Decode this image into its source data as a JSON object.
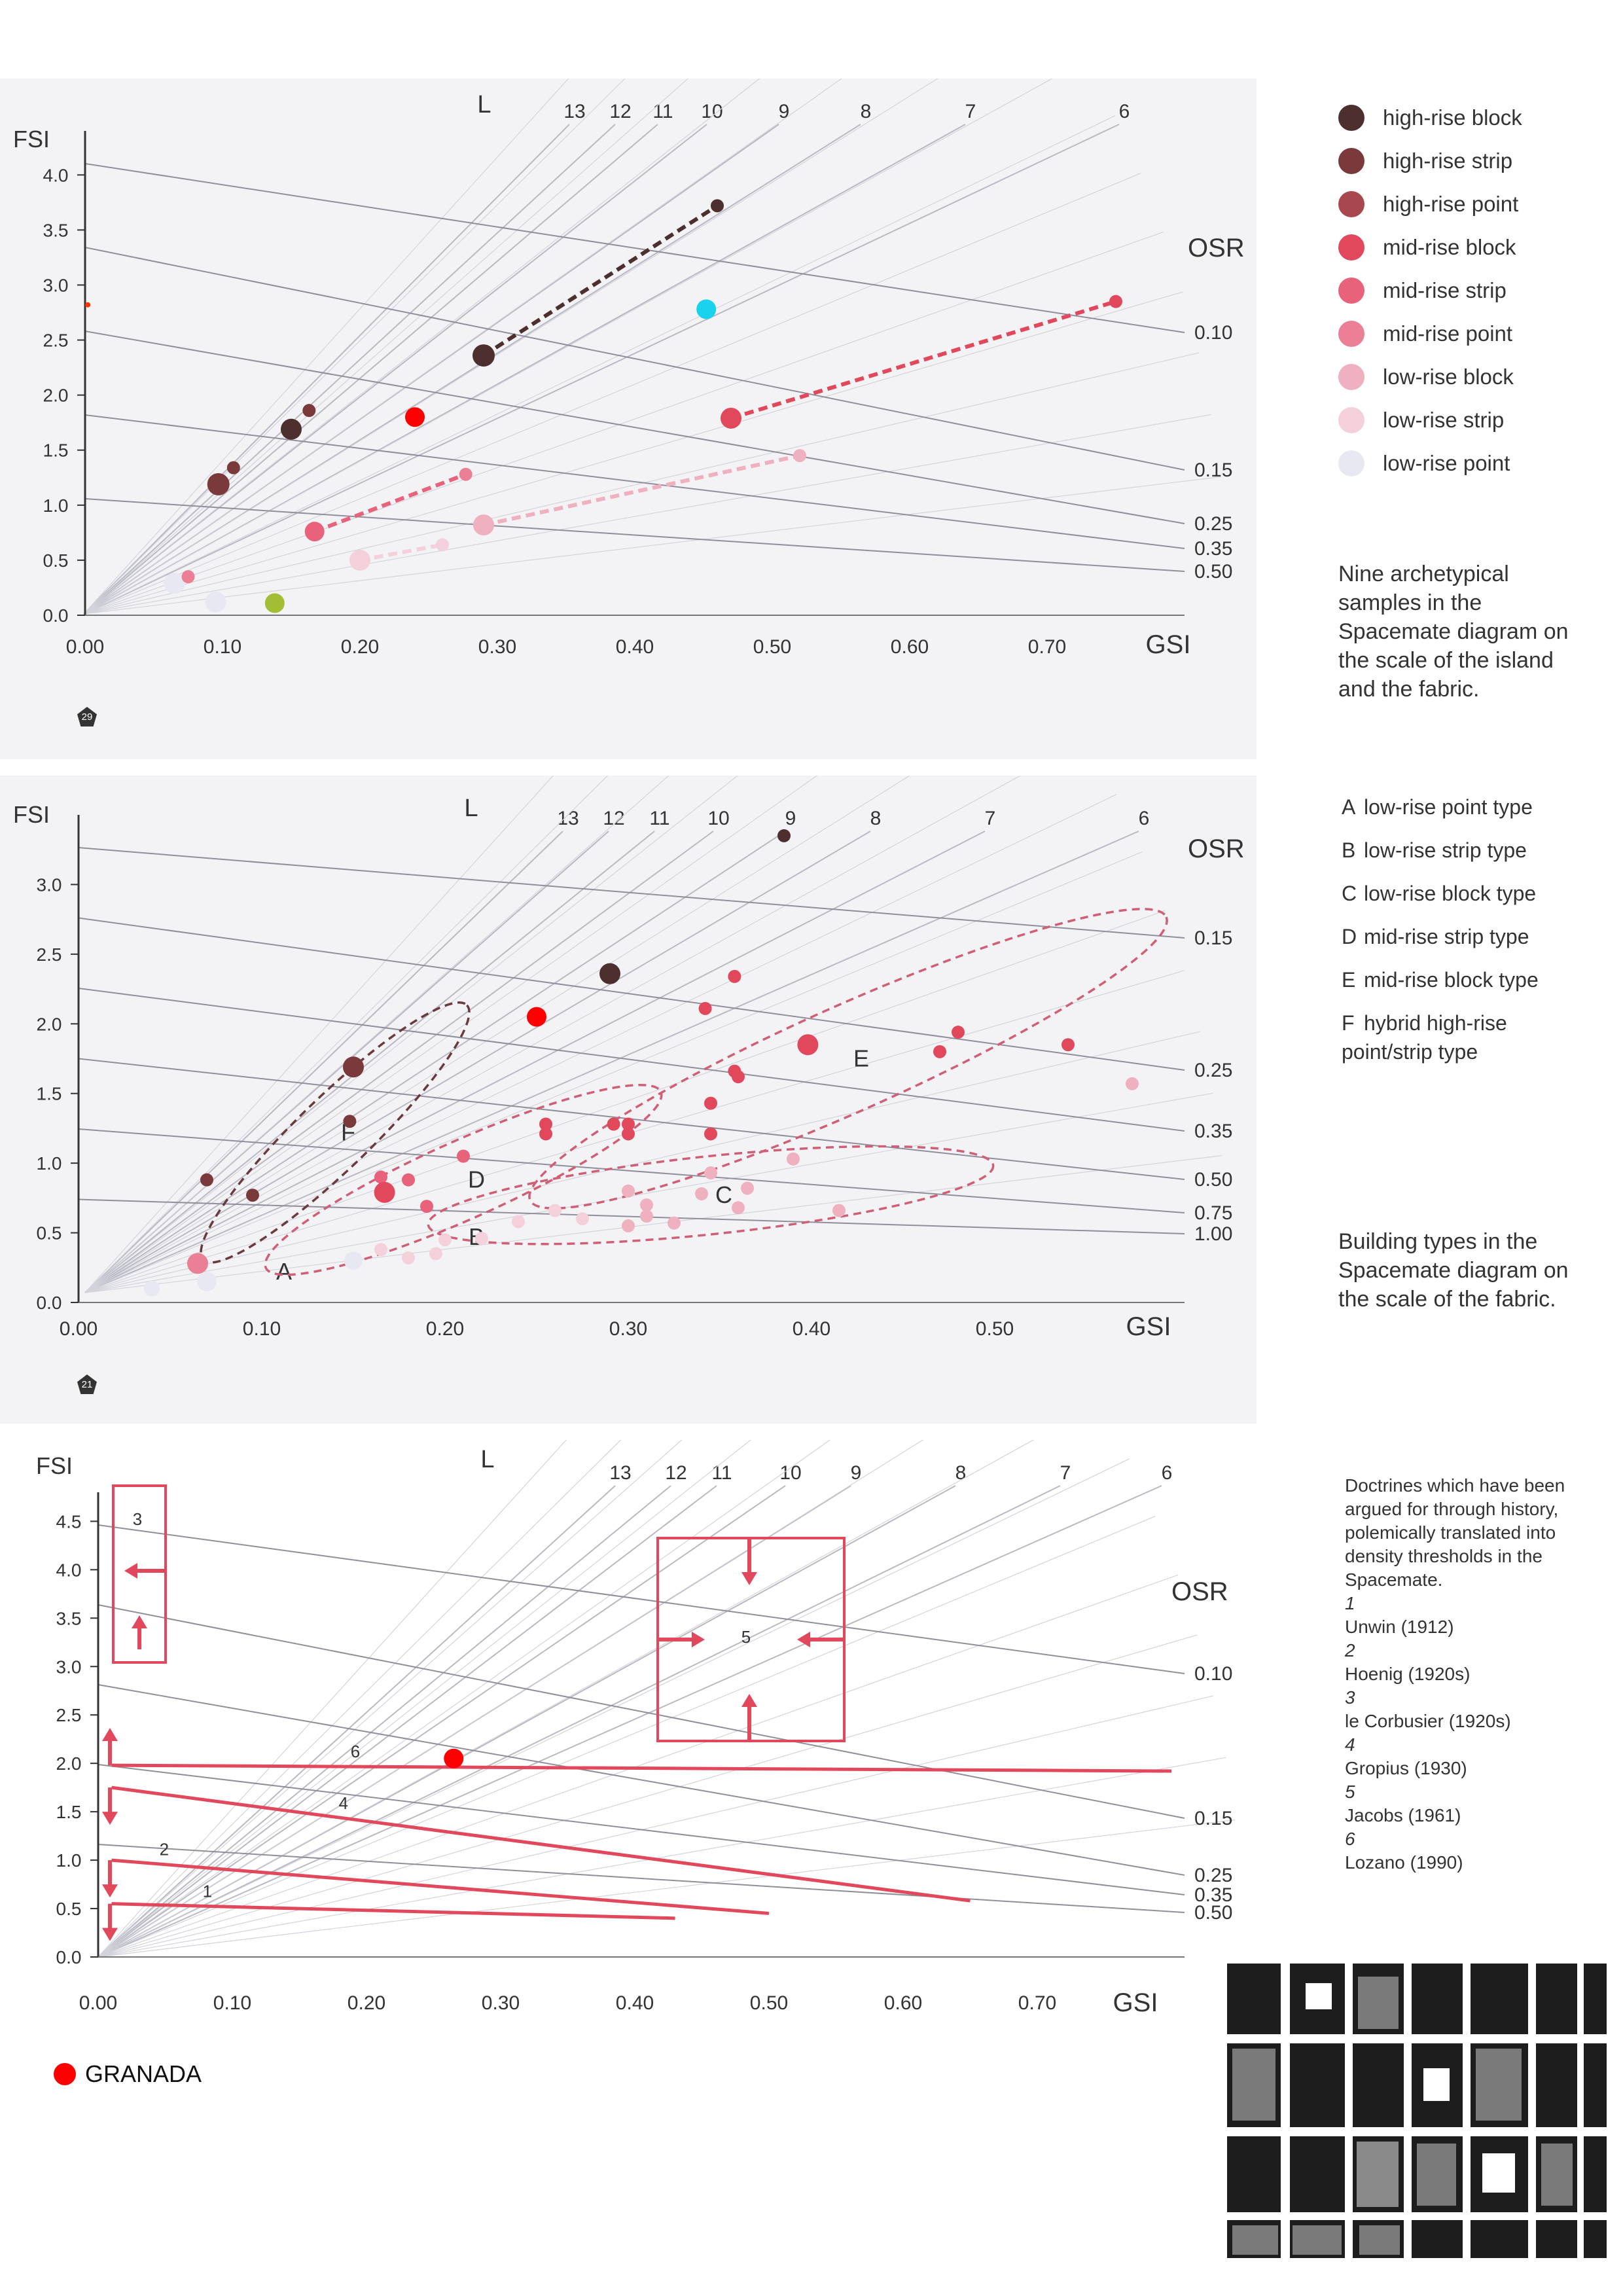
{
  "panels": [
    {
      "badge": "29",
      "legend": [
        {
          "label": "high-rise block",
          "color": "#4e2f2f"
        },
        {
          "label": "high-rise strip",
          "color": "#7a3a3c"
        },
        {
          "label": "high-rise point",
          "color": "#a8474e"
        },
        {
          "label": "mid-rise block",
          "color": "#e2485c"
        },
        {
          "label": "mid-rise strip",
          "color": "#e7627a"
        },
        {
          "label": "mid-rise point",
          "color": "#eb7f95"
        },
        {
          "label": "low-rise block",
          "color": "#efb0c0"
        },
        {
          "label": "low-rise strip",
          "color": "#f4d0da"
        },
        {
          "label": "low-rise point",
          "color": "#e8e8f3"
        }
      ],
      "caption": "Nine archetypical samples in the Spacemate diagram on the scale of the island and the fabric."
    },
    {
      "badge": "21",
      "types": [
        {
          "letter": "A",
          "label": "low-rise point type"
        },
        {
          "letter": "B",
          "label": "low-rise strip type"
        },
        {
          "letter": "C",
          "label": "low-rise block type"
        },
        {
          "letter": "D",
          "label": "mid-rise strip type"
        },
        {
          "letter": "E",
          "label": "mid-rise block type"
        },
        {
          "letter": "F",
          "label": "hybrid high-rise point/strip type"
        }
      ],
      "caption": "Building types in the Spacemate diagram on the scale of the fabric."
    },
    {
      "doctrines_intro": "Doctrines which have been argued for through history, polemically translated into density thresholds in the Spacemate.",
      "doctrines": [
        {
          "num": "1",
          "name": "Unwin (1912)"
        },
        {
          "num": "2",
          "name": "Hoenig (1920s)"
        },
        {
          "num": "3",
          "name": "le Corbusier (1920s)"
        },
        {
          "num": "4",
          "name": "Gropius (1930)"
        },
        {
          "num": "5",
          "name": "Jacobs (1961)"
        },
        {
          "num": "6",
          "name": "Lozano (1990)"
        }
      ],
      "granada_label": "GRANADA"
    }
  ],
  "chart_data": [
    {
      "type": "scatter",
      "xlabel": "GSI",
      "ylabel": "FSI",
      "xlim": [
        0,
        0.8
      ],
      "ylim": [
        0,
        4.4
      ],
      "xticks": [
        "0.00",
        "0.10",
        "0.20",
        "0.30",
        "0.40",
        "0.50",
        "0.60",
        "0.70"
      ],
      "yticks": [
        "0.0",
        "0.5",
        "1.0",
        "1.5",
        "2.0",
        "2.5",
        "3.0",
        "3.5",
        "4.0"
      ],
      "l_label": "L",
      "osr_label": "OSR",
      "l_lines": [
        "13",
        "12",
        "11",
        "10",
        "9",
        "8",
        "7",
        "6"
      ],
      "osr_lines": [
        "0.10",
        "0.15",
        "0.25",
        "0.35",
        "0.50"
      ],
      "points": [
        {
          "x": 0.065,
          "y": 0.29,
          "cat": 8,
          "r": 16
        },
        {
          "x": 0.075,
          "y": 0.35,
          "cat": 5,
          "r": 10
        },
        {
          "x": 0.095,
          "y": 0.12,
          "cat": 8,
          "r": 16
        },
        {
          "x": 0.097,
          "y": 1.19,
          "cat": 1,
          "r": 17
        },
        {
          "x": 0.108,
          "y": 1.34,
          "cat": 1,
          "r": 10
        },
        {
          "x": 0.15,
          "y": 1.69,
          "cat": 0,
          "r": 16
        },
        {
          "x": 0.163,
          "y": 1.86,
          "cat": 1,
          "r": 10
        },
        {
          "x": 0.167,
          "y": 0.76,
          "cat": 4,
          "r": 15
        },
        {
          "x": 0.2,
          "y": 0.5,
          "cat": 7,
          "r": 16
        },
        {
          "x": 0.277,
          "y": 1.28,
          "cat": 5,
          "r": 10
        },
        {
          "x": 0.26,
          "y": 0.64,
          "cat": 7,
          "r": 10
        },
        {
          "x": 0.29,
          "y": 2.36,
          "cat": 0,
          "r": 17
        },
        {
          "x": 0.29,
          "y": 0.82,
          "cat": 6,
          "r": 16
        },
        {
          "x": 0.46,
          "y": 3.72,
          "cat": 0,
          "r": 10
        },
        {
          "x": 0.47,
          "y": 1.79,
          "cat": 3,
          "r": 16
        },
        {
          "x": 0.52,
          "y": 1.45,
          "cat": 6,
          "r": 10
        },
        {
          "x": 0.75,
          "y": 2.85,
          "cat": 3,
          "r": 10
        }
      ],
      "links": [
        {
          "from": [
            0.29,
            2.36
          ],
          "to": [
            0.46,
            3.72
          ],
          "cat": 0
        },
        {
          "from": [
            0.47,
            1.79
          ],
          "to": [
            0.75,
            2.85
          ],
          "cat": 3
        },
        {
          "from": [
            0.167,
            0.76
          ],
          "to": [
            0.277,
            1.28
          ],
          "cat": 4
        },
        {
          "from": [
            0.29,
            0.82
          ],
          "to": [
            0.52,
            1.45
          ],
          "cat": 6
        },
        {
          "from": [
            0.2,
            0.5
          ],
          "to": [
            0.26,
            0.64
          ],
          "cat": 7
        }
      ],
      "highlights": [
        {
          "x": 0.24,
          "y": 1.8,
          "color": "#ff0000"
        },
        {
          "x": 0.452,
          "y": 2.78,
          "color": "#19d3ee"
        },
        {
          "x": 0.138,
          "y": 0.11,
          "color": "#a2be34"
        },
        {
          "x": 0.002,
          "y": 2.82,
          "color": "#ff3300"
        }
      ]
    },
    {
      "type": "scatter",
      "xlabel": "GSI",
      "ylabel": "FSI",
      "xlim": [
        0,
        0.6
      ],
      "ylim": [
        0,
        3.5
      ],
      "xticks": [
        "0.00",
        "0.10",
        "0.20",
        "0.30",
        "0.40",
        "0.50"
      ],
      "yticks": [
        "0.0",
        "0.5",
        "1.0",
        "1.5",
        "2.0",
        "2.5",
        "3.0"
      ],
      "l_label": "L",
      "osr_label": "OSR",
      "l_lines": [
        "13",
        "12",
        "11",
        "10",
        "9",
        "8",
        "7",
        "6"
      ],
      "osr_lines": [
        "0.15",
        "0.25",
        "0.35",
        "0.50",
        "0.75",
        "1.00"
      ],
      "points": [
        {
          "x": 0.385,
          "y": 3.35,
          "cat": 0,
          "r": 10
        },
        {
          "x": 0.29,
          "y": 2.36,
          "cat": 0,
          "r": 16
        },
        {
          "x": 0.15,
          "y": 1.69,
          "cat": 1,
          "r": 16
        },
        {
          "x": 0.148,
          "y": 1.3,
          "cat": 1,
          "r": 10
        },
        {
          "x": 0.07,
          "y": 0.88,
          "cat": 1,
          "r": 10
        },
        {
          "x": 0.095,
          "y": 0.77,
          "cat": 1,
          "r": 10
        },
        {
          "x": 0.065,
          "y": 0.28,
          "cat": 5,
          "r": 16
        },
        {
          "x": 0.04,
          "y": 0.1,
          "cat": 8,
          "r": 12
        },
        {
          "x": 0.07,
          "y": 0.15,
          "cat": 8,
          "r": 15
        },
        {
          "x": 0.15,
          "y": 0.3,
          "cat": 8,
          "r": 14
        },
        {
          "x": 0.165,
          "y": 0.9,
          "cat": 4,
          "r": 10
        },
        {
          "x": 0.167,
          "y": 0.79,
          "cat": 3,
          "r": 16
        },
        {
          "x": 0.18,
          "y": 0.88,
          "cat": 4,
          "r": 10
        },
        {
          "x": 0.19,
          "y": 0.69,
          "cat": 4,
          "r": 10
        },
        {
          "x": 0.21,
          "y": 1.05,
          "cat": 4,
          "r": 10
        },
        {
          "x": 0.165,
          "y": 0.38,
          "cat": 7,
          "r": 10
        },
        {
          "x": 0.18,
          "y": 0.32,
          "cat": 7,
          "r": 10
        },
        {
          "x": 0.195,
          "y": 0.35,
          "cat": 7,
          "r": 10
        },
        {
          "x": 0.2,
          "y": 0.45,
          "cat": 7,
          "r": 10
        },
        {
          "x": 0.22,
          "y": 0.46,
          "cat": 7,
          "r": 10
        },
        {
          "x": 0.24,
          "y": 0.58,
          "cat": 7,
          "r": 10
        },
        {
          "x": 0.26,
          "y": 0.66,
          "cat": 7,
          "r": 10
        },
        {
          "x": 0.275,
          "y": 0.6,
          "cat": 7,
          "r": 10
        },
        {
          "x": 0.3,
          "y": 0.55,
          "cat": 6,
          "r": 10
        },
        {
          "x": 0.31,
          "y": 0.62,
          "cat": 6,
          "r": 10
        },
        {
          "x": 0.325,
          "y": 0.57,
          "cat": 6,
          "r": 10
        },
        {
          "x": 0.3,
          "y": 0.8,
          "cat": 6,
          "r": 10
        },
        {
          "x": 0.31,
          "y": 0.7,
          "cat": 6,
          "r": 10
        },
        {
          "x": 0.34,
          "y": 0.78,
          "cat": 6,
          "r": 10
        },
        {
          "x": 0.345,
          "y": 0.93,
          "cat": 6,
          "r": 10
        },
        {
          "x": 0.36,
          "y": 0.68,
          "cat": 6,
          "r": 10
        },
        {
          "x": 0.365,
          "y": 0.82,
          "cat": 6,
          "r": 10
        },
        {
          "x": 0.39,
          "y": 1.03,
          "cat": 6,
          "r": 10
        },
        {
          "x": 0.415,
          "y": 0.66,
          "cat": 6,
          "r": 10
        },
        {
          "x": 0.255,
          "y": 1.28,
          "cat": 3,
          "r": 10
        },
        {
          "x": 0.255,
          "y": 1.21,
          "cat": 3,
          "r": 10
        },
        {
          "x": 0.292,
          "y": 1.28,
          "cat": 3,
          "r": 10
        },
        {
          "x": 0.3,
          "y": 1.21,
          "cat": 3,
          "r": 10
        },
        {
          "x": 0.3,
          "y": 1.28,
          "cat": 3,
          "r": 10
        },
        {
          "x": 0.345,
          "y": 1.21,
          "cat": 3,
          "r": 10
        },
        {
          "x": 0.345,
          "y": 1.43,
          "cat": 3,
          "r": 10
        },
        {
          "x": 0.358,
          "y": 1.66,
          "cat": 3,
          "r": 10
        },
        {
          "x": 0.36,
          "y": 1.62,
          "cat": 3,
          "r": 10
        },
        {
          "x": 0.342,
          "y": 2.11,
          "cat": 3,
          "r": 10
        },
        {
          "x": 0.358,
          "y": 2.34,
          "cat": 3,
          "r": 10
        },
        {
          "x": 0.398,
          "y": 1.85,
          "cat": 3,
          "r": 16
        },
        {
          "x": 0.47,
          "y": 1.8,
          "cat": 3,
          "r": 10
        },
        {
          "x": 0.48,
          "y": 1.94,
          "cat": 3,
          "r": 10
        },
        {
          "x": 0.54,
          "y": 1.85,
          "cat": 3,
          "r": 10
        },
        {
          "x": 0.575,
          "y": 1.57,
          "cat": 6,
          "r": 10
        }
      ],
      "highlights": [
        {
          "x": 0.25,
          "y": 2.05,
          "color": "#ff0000"
        }
      ],
      "regions": [
        {
          "label": "A",
          "cx": 0.105,
          "cy": 0.22,
          "rx": 0,
          "ry": 0,
          "rot": 0
        },
        {
          "label": "B",
          "cx": 0.21,
          "cy": 0.47,
          "rx": 0,
          "ry": 0,
          "rot": 0
        },
        {
          "label": "C",
          "cx": 0.345,
          "cy": 0.77,
          "rx": 0.155,
          "ry": 0.28,
          "rot": -6
        },
        {
          "label": "D",
          "cx": 0.21,
          "cy": 0.88,
          "rx": 0.118,
          "ry": 0.28,
          "rot": -24
        },
        {
          "label": "E",
          "cx": 0.42,
          "cy": 1.75,
          "rx": 0.19,
          "ry": 0.38,
          "rot": -24
        },
        {
          "label": "F",
          "cx": 0.14,
          "cy": 1.22,
          "rx": 0.1,
          "ry": 0.26,
          "rot": -44
        }
      ]
    },
    {
      "type": "scatter",
      "xlabel": "GSI",
      "ylabel": "FSI",
      "xlim": [
        0,
        0.8
      ],
      "ylim": [
        0,
        4.8
      ],
      "xticks": [
        "0.00",
        "0.10",
        "0.20",
        "0.30",
        "0.40",
        "0.50",
        "0.60",
        "0.70"
      ],
      "yticks": [
        "0.0",
        "0.5",
        "1.0",
        "1.5",
        "2.0",
        "2.5",
        "3.0",
        "3.5",
        "4.0",
        "4.5"
      ],
      "l_label": "L",
      "osr_label": "OSR",
      "l_lines": [
        "13",
        "12",
        "11",
        "10",
        "9",
        "8",
        "7",
        "6"
      ],
      "osr_lines": [
        "0.10",
        "0.15",
        "0.25",
        "0.35",
        "0.50"
      ],
      "doctrine_lines": [
        {
          "label": "1",
          "from": [
            0.01,
            0.55
          ],
          "to": [
            0.43,
            0.4
          ]
        },
        {
          "label": "2",
          "from": [
            0.01,
            1.0
          ],
          "to": [
            0.5,
            0.45
          ]
        },
        {
          "label": "4",
          "from": [
            0.01,
            1.75
          ],
          "to": [
            0.65,
            0.58
          ]
        },
        {
          "label": "6",
          "from": [
            0.01,
            1.98
          ],
          "to": [
            0.8,
            1.92
          ]
        }
      ],
      "highlights": [
        {
          "x": 0.265,
          "y": 2.05,
          "color": "#ff0000"
        }
      ]
    }
  ]
}
